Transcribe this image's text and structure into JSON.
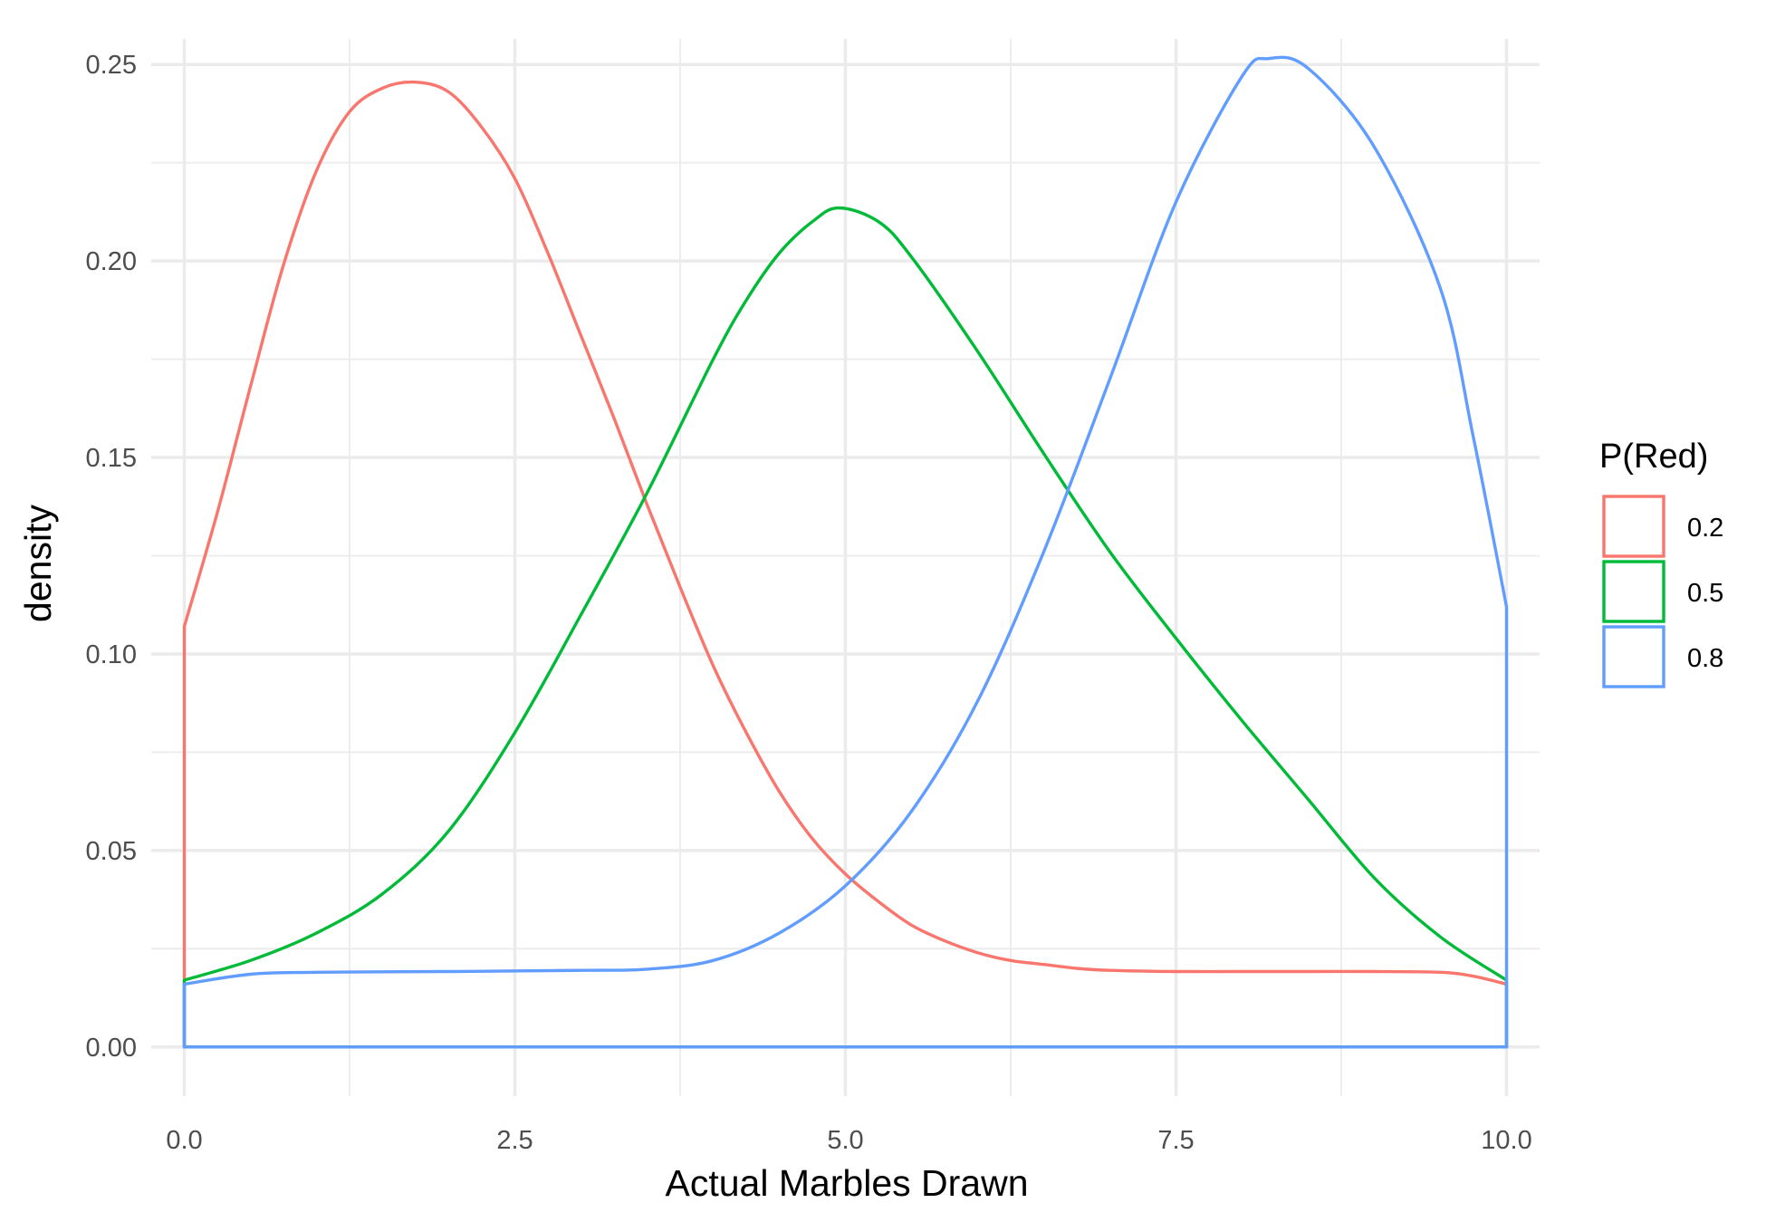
{
  "chart_data": {
    "type": "line",
    "xlabel": "Actual Marbles Drawn",
    "ylabel": "density",
    "xlim": [
      -0.25,
      10.25
    ],
    "ylim": [
      -0.0125,
      0.2565
    ],
    "x_ticks": [
      0.0,
      2.5,
      5.0,
      7.5,
      10.0
    ],
    "x_tick_labels": [
      "0.0",
      "2.5",
      "5.0",
      "7.5",
      "10.0"
    ],
    "y_ticks": [
      0.0,
      0.05,
      0.1,
      0.15,
      0.2,
      0.25
    ],
    "y_tick_labels": [
      "0.00",
      "0.05",
      "0.10",
      "0.15",
      "0.20",
      "0.25"
    ],
    "grid": true,
    "legend": {
      "title": "P(Red)",
      "position": "right"
    },
    "series": [
      {
        "name": "0.2",
        "color": "#F8766D",
        "x": [
          0,
          0.25,
          0.5,
          0.75,
          1.0,
          1.25,
          1.5,
          1.75,
          2.0,
          2.25,
          2.5,
          2.75,
          3.0,
          3.25,
          3.5,
          3.75,
          4.0,
          4.25,
          4.5,
          4.75,
          5.0,
          5.25,
          5.5,
          5.75,
          6.0,
          6.25,
          6.5,
          6.75,
          7.0,
          7.5,
          8.0,
          8.5,
          9.0,
          9.5,
          9.75,
          10.0
        ],
        "y": [
          0.107,
          0.136,
          0.168,
          0.199,
          0.223,
          0.238,
          0.244,
          0.2455,
          0.243,
          0.234,
          0.221,
          0.202,
          0.181,
          0.16,
          0.138,
          0.117,
          0.097,
          0.08,
          0.065,
          0.053,
          0.044,
          0.037,
          0.031,
          0.027,
          0.024,
          0.022,
          0.021,
          0.02,
          0.0195,
          0.0192,
          0.0192,
          0.0192,
          0.0192,
          0.019,
          0.018,
          0.016
        ]
      },
      {
        "name": "0.5",
        "color": "#00BA38",
        "x": [
          0,
          0.5,
          1.0,
          1.5,
          2.0,
          2.5,
          3.0,
          3.5,
          4.0,
          4.25,
          4.5,
          4.75,
          4.95,
          5.25,
          5.5,
          6.0,
          6.5,
          7.0,
          7.5,
          8.0,
          8.5,
          9.0,
          9.5,
          10.0
        ],
        "y": [
          0.017,
          0.022,
          0.029,
          0.039,
          0.055,
          0.08,
          0.11,
          0.141,
          0.175,
          0.19,
          0.202,
          0.21,
          0.2135,
          0.21,
          0.201,
          0.177,
          0.151,
          0.126,
          0.104,
          0.083,
          0.063,
          0.043,
          0.028,
          0.017
        ]
      },
      {
        "name": "0.8",
        "color": "#619CFF",
        "x": [
          0,
          0.5,
          1.0,
          2.0,
          3.0,
          3.5,
          4.0,
          4.5,
          5.0,
          5.5,
          6.0,
          6.5,
          7.0,
          7.5,
          8.0,
          8.2,
          8.5,
          9.0,
          9.5,
          9.75,
          10.0
        ],
        "y": [
          0.016,
          0.0185,
          0.019,
          0.0192,
          0.0195,
          0.0198,
          0.022,
          0.029,
          0.041,
          0.06,
          0.088,
          0.126,
          0.17,
          0.215,
          0.247,
          0.2515,
          0.249,
          0.229,
          0.193,
          0.155,
          0.112
        ]
      }
    ]
  }
}
